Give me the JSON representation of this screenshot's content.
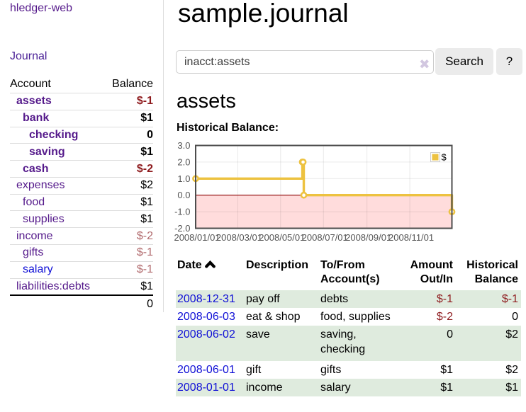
{
  "app": {
    "title": "hledger-web"
  },
  "sidebar": {
    "journal_link": "Journal",
    "accounts": {
      "headers": {
        "account": "Account",
        "balance": "Balance"
      },
      "rows": [
        {
          "account": "assets",
          "balance": "$-1",
          "depth": 1,
          "bold": true,
          "link": "visited",
          "balance_style": "neg-strong"
        },
        {
          "account": "bank",
          "balance": "$1",
          "depth": 2,
          "bold": true,
          "link": "visited",
          "balance_style": "normal"
        },
        {
          "account": "checking",
          "balance": "0",
          "depth": 3,
          "bold": true,
          "link": "visited",
          "balance_style": "normal"
        },
        {
          "account": "saving",
          "balance": "$1",
          "depth": 3,
          "bold": true,
          "link": "visited",
          "balance_style": "normal"
        },
        {
          "account": "cash",
          "balance": "$-2",
          "depth": 2,
          "bold": true,
          "link": "visited",
          "balance_style": "neg-strong"
        },
        {
          "account": "expenses",
          "balance": "$2",
          "depth": 1,
          "bold": false,
          "link": "visited",
          "balance_style": "normal"
        },
        {
          "account": "food",
          "balance": "$1",
          "depth": 2,
          "bold": false,
          "link": "visited",
          "balance_style": "normal"
        },
        {
          "account": "supplies",
          "balance": "$1",
          "depth": 2,
          "bold": false,
          "link": "visited",
          "balance_style": "normal"
        },
        {
          "account": "income",
          "balance": "$-2",
          "depth": 1,
          "bold": false,
          "link": "visited",
          "balance_style": "neg-faded"
        },
        {
          "account": "gifts",
          "balance": "$-1",
          "depth": 2,
          "bold": false,
          "link": "visited",
          "balance_style": "neg-faded"
        },
        {
          "account": "salary",
          "balance": "$-1",
          "depth": 2,
          "bold": false,
          "link": "unvisited",
          "balance_style": "neg-faded"
        },
        {
          "account": "liabilities:debts",
          "balance": "$1",
          "depth": 1,
          "bold": false,
          "link": "visited",
          "balance_style": "normal"
        }
      ],
      "total": "0"
    }
  },
  "header": {
    "title": "sample.journal"
  },
  "search": {
    "value": "inacct:assets",
    "clear_icon": "✖",
    "button_label": "Search",
    "help_label": "?"
  },
  "account_page": {
    "heading": "assets",
    "chart_label": "Historical Balance:"
  },
  "chart_data": {
    "type": "line",
    "step": true,
    "title": "Historical Balance",
    "series": [
      {
        "name": "$",
        "color": "#edc240",
        "points": [
          {
            "date": "2008-01-01",
            "value": 1
          },
          {
            "date": "2008-06-01",
            "value": 2
          },
          {
            "date": "2008-06-02",
            "value": 2
          },
          {
            "date": "2008-06-03",
            "value": 0
          },
          {
            "date": "2008-12-31",
            "value": -1
          }
        ]
      }
    ],
    "xrange": [
      "2008-01-01",
      "2008-12-31"
    ],
    "xtick_labels": [
      "2008/01/01",
      "2008/03/01",
      "2008/05/01",
      "2008/07/01",
      "2008/09/01",
      "2008/11/01"
    ],
    "xtick_dates": [
      "2008-01-01",
      "2008-03-01",
      "2008-05-01",
      "2008-07-01",
      "2008-09-01",
      "2008-11-01"
    ],
    "ylim": [
      -2,
      3
    ],
    "ytick_labels": [
      "3.0",
      "2.0",
      "1.0",
      "0.0",
      "-1.0",
      "-2.0"
    ],
    "ytick_values": [
      3,
      2,
      1,
      0,
      -1,
      -2
    ],
    "grid": true,
    "grid_color": "#e6e6e6",
    "border_color": "#4d4d4d",
    "label_color": "#545454",
    "zero_line_color": "#8b0000",
    "negative_region_color": "#ffdcdc",
    "legend": {
      "position": "top-right",
      "label": "$",
      "swatch_color": "#edc240",
      "swatch_border": "#ccc"
    }
  },
  "register": {
    "columns": [
      {
        "label": "Date",
        "sorted": "ascending"
      },
      {
        "label": "Description"
      },
      {
        "label": "To/From Account(s)"
      },
      {
        "label": "Amount Out/In"
      },
      {
        "label": "Historical Balance"
      }
    ],
    "rows": [
      {
        "date": "2008-12-31",
        "description": "pay off",
        "accounts": "debts",
        "amount": "$-1",
        "amount_style": "neg-strong",
        "balance": "$-1",
        "balance_style": "neg-strong"
      },
      {
        "date": "2008-06-03",
        "description": "eat & shop",
        "accounts": "food, supplies",
        "amount": "$-2",
        "amount_style": "neg-strong",
        "balance": "0",
        "balance_style": "normal"
      },
      {
        "date": "2008-06-02",
        "description": "save",
        "accounts": "saving, checking",
        "amount": "0",
        "amount_style": "normal",
        "balance": "$2",
        "balance_style": "normal"
      },
      {
        "date": "2008-06-01",
        "description": "gift",
        "accounts": "gifts",
        "amount": "$1",
        "amount_style": "normal",
        "balance": "$2",
        "balance_style": "normal"
      },
      {
        "date": "2008-01-01",
        "description": "income",
        "accounts": "salary",
        "amount": "$1",
        "amount_style": "normal",
        "balance": "$1",
        "balance_style": "normal"
      }
    ]
  },
  "colors": {
    "row_highlight": "#dfebde",
    "link_visited": "#551a8b",
    "link_unvisited": "#0f0fd6",
    "negative_strong": "#8e1b1e",
    "negative_faded": "#b16a6d",
    "sidebar_border": "#dddddd",
    "button_bg": "#ebebeb"
  }
}
